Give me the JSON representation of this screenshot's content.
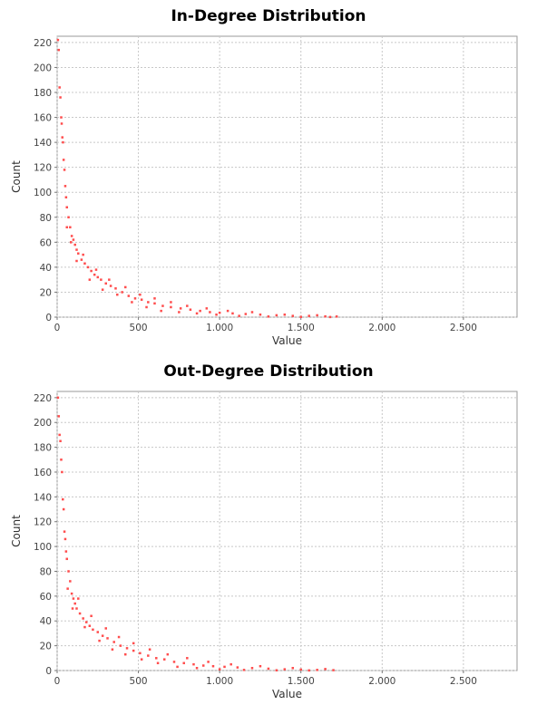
{
  "chart_data": [
    {
      "type": "scatter",
      "title": "In-Degree Distribution",
      "xlabel": "Value",
      "ylabel": "Count",
      "xlim": [
        0,
        2830
      ],
      "ylim": [
        0,
        225
      ],
      "x_ticks": [
        0,
        500,
        1000,
        1500,
        2000,
        2500
      ],
      "x_tick_labels": [
        "0",
        "500",
        "1.000",
        "1.500",
        "2.000",
        "2.500"
      ],
      "y_ticks": [
        0,
        20,
        40,
        60,
        80,
        100,
        120,
        140,
        160,
        180,
        200,
        220
      ],
      "grid": true,
      "point_color": "#ff4d4d",
      "series": [
        {
          "points": [
            [
              5,
              222
            ],
            [
              10,
              214
            ],
            [
              15,
              184
            ],
            [
              20,
              176
            ],
            [
              25,
              160
            ],
            [
              28,
              155
            ],
            [
              32,
              144
            ],
            [
              36,
              140
            ],
            [
              40,
              126
            ],
            [
              45,
              118
            ],
            [
              50,
              105
            ],
            [
              55,
              96
            ],
            [
              60,
              88
            ],
            [
              70,
              80
            ],
            [
              80,
              72
            ],
            [
              90,
              65
            ],
            [
              100,
              62
            ],
            [
              110,
              58
            ],
            [
              120,
              54
            ],
            [
              130,
              51
            ],
            [
              150,
              46
            ],
            [
              170,
              43
            ],
            [
              190,
              40
            ],
            [
              210,
              37
            ],
            [
              230,
              34
            ],
            [
              250,
              32
            ],
            [
              270,
              30
            ],
            [
              300,
              27
            ],
            [
              330,
              25
            ],
            [
              360,
              23
            ],
            [
              400,
              20
            ],
            [
              440,
              17
            ],
            [
              480,
              15
            ],
            [
              520,
              14
            ],
            [
              560,
              12
            ],
            [
              600,
              11
            ],
            [
              650,
              9
            ],
            [
              700,
              8
            ],
            [
              760,
              7
            ],
            [
              820,
              6
            ],
            [
              880,
              5
            ],
            [
              940,
              4
            ],
            [
              1000,
              3.5
            ],
            [
              1080,
              3
            ],
            [
              1160,
              2.5
            ],
            [
              1250,
              2
            ],
            [
              1350,
              1.5
            ],
            [
              1450,
              1
            ],
            [
              1550,
              1
            ],
            [
              1650,
              0.6
            ],
            [
              1720,
              0.5
            ],
            [
              60,
              72
            ],
            [
              85,
              60
            ],
            [
              120,
              45
            ],
            [
              160,
              50
            ],
            [
              200,
              30
            ],
            [
              240,
              38
            ],
            [
              280,
              22
            ],
            [
              320,
              30
            ],
            [
              370,
              18
            ],
            [
              420,
              24
            ],
            [
              460,
              12
            ],
            [
              510,
              18
            ],
            [
              550,
              8
            ],
            [
              600,
              15
            ],
            [
              640,
              5
            ],
            [
              700,
              12
            ],
            [
              750,
              4
            ],
            [
              800,
              9
            ],
            [
              860,
              3
            ],
            [
              920,
              7
            ],
            [
              980,
              2
            ],
            [
              1050,
              5
            ],
            [
              1120,
              1
            ],
            [
              1200,
              4
            ],
            [
              1300,
              0.5
            ],
            [
              1400,
              2
            ],
            [
              1500,
              0.2
            ],
            [
              1600,
              1.5
            ],
            [
              1680,
              0.1
            ]
          ]
        }
      ]
    },
    {
      "type": "scatter",
      "title": "Out-Degree Distribution",
      "xlabel": "Value",
      "ylabel": "Count",
      "xlim": [
        0,
        2830
      ],
      "ylim": [
        0,
        225
      ],
      "x_ticks": [
        0,
        500,
        1000,
        1500,
        2000,
        2500
      ],
      "x_tick_labels": [
        "0",
        "500",
        "1.000",
        "1.500",
        "2.000",
        "2.500"
      ],
      "y_ticks": [
        0,
        20,
        40,
        60,
        80,
        100,
        120,
        140,
        160,
        180,
        200,
        220
      ],
      "grid": true,
      "point_color": "#ff4d4d",
      "series": [
        {
          "points": [
            [
              5,
              220
            ],
            [
              10,
              205
            ],
            [
              15,
              190
            ],
            [
              20,
              185
            ],
            [
              25,
              170
            ],
            [
              30,
              160
            ],
            [
              35,
              138
            ],
            [
              40,
              130
            ],
            [
              45,
              112
            ],
            [
              50,
              106
            ],
            [
              55,
              96
            ],
            [
              60,
              90
            ],
            [
              70,
              80
            ],
            [
              80,
              72
            ],
            [
              90,
              62
            ],
            [
              100,
              58
            ],
            [
              110,
              54
            ],
            [
              120,
              50
            ],
            [
              140,
              46
            ],
            [
              160,
              42
            ],
            [
              180,
              39
            ],
            [
              200,
              36
            ],
            [
              220,
              33
            ],
            [
              250,
              31
            ],
            [
              280,
              28
            ],
            [
              310,
              26
            ],
            [
              350,
              23
            ],
            [
              390,
              20
            ],
            [
              430,
              18
            ],
            [
              470,
              16
            ],
            [
              510,
              14
            ],
            [
              560,
              12
            ],
            [
              610,
              10
            ],
            [
              660,
              9
            ],
            [
              720,
              7
            ],
            [
              780,
              6
            ],
            [
              840,
              5
            ],
            [
              900,
              4
            ],
            [
              960,
              3.5
            ],
            [
              1030,
              3
            ],
            [
              1110,
              2.5
            ],
            [
              1200,
              2
            ],
            [
              1300,
              1.5
            ],
            [
              1400,
              1
            ],
            [
              1500,
              0.8
            ],
            [
              1600,
              0.5
            ],
            [
              1700,
              0.3
            ],
            [
              65,
              66
            ],
            [
              95,
              50
            ],
            [
              130,
              58
            ],
            [
              170,
              35
            ],
            [
              210,
              44
            ],
            [
              260,
              24
            ],
            [
              300,
              34
            ],
            [
              340,
              17
            ],
            [
              380,
              27
            ],
            [
              420,
              13
            ],
            [
              470,
              22
            ],
            [
              520,
              9
            ],
            [
              570,
              17
            ],
            [
              620,
              6
            ],
            [
              680,
              13
            ],
            [
              740,
              3
            ],
            [
              800,
              10
            ],
            [
              860,
              2
            ],
            [
              930,
              7
            ],
            [
              1000,
              1
            ],
            [
              1070,
              5
            ],
            [
              1150,
              0.5
            ],
            [
              1250,
              3.5
            ],
            [
              1350,
              0.2
            ],
            [
              1450,
              2
            ],
            [
              1550,
              0.1
            ],
            [
              1650,
              1.2
            ]
          ]
        }
      ]
    }
  ]
}
